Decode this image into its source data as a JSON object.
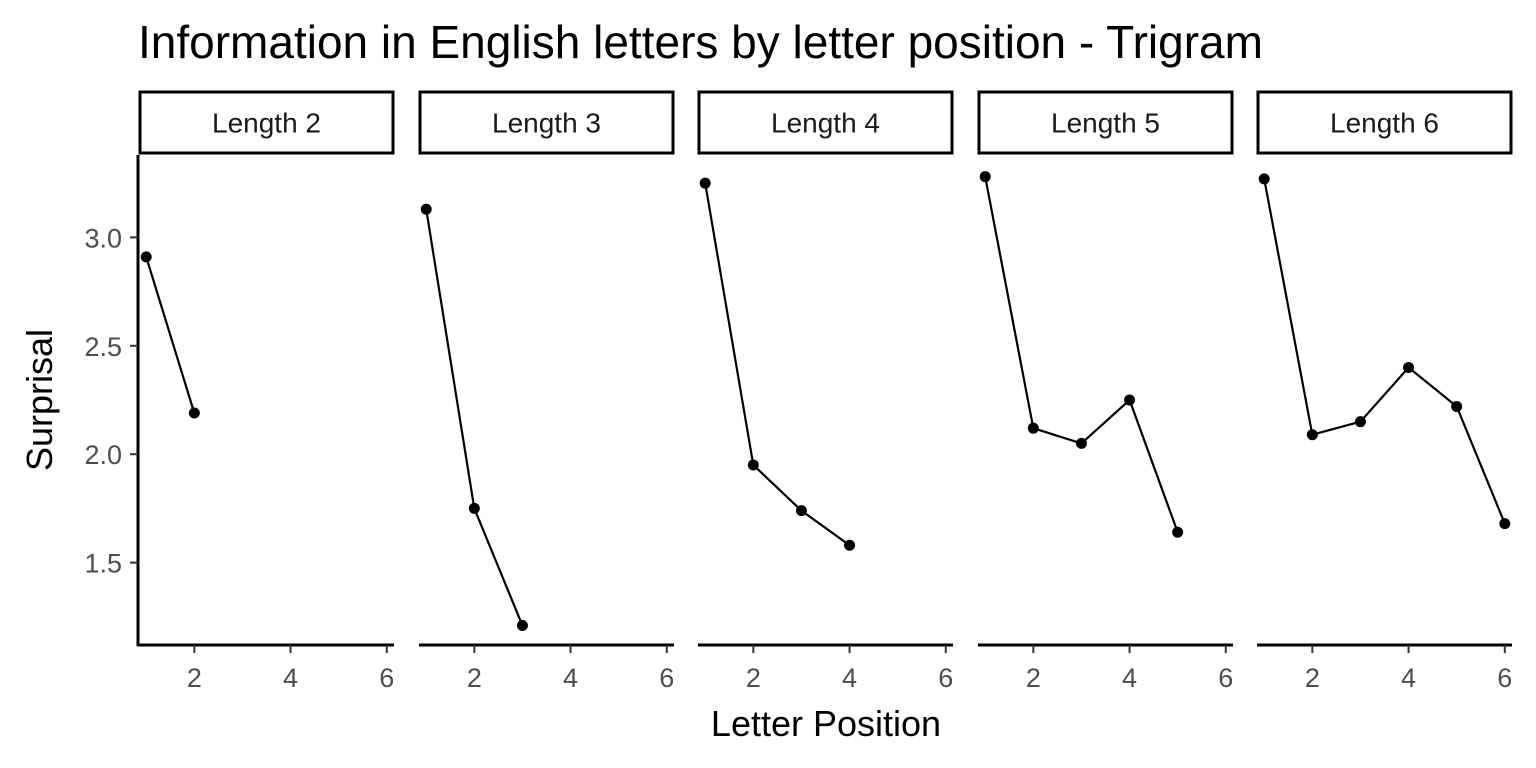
{
  "chart_data": {
    "type": "line",
    "title": "Information in English letters by letter position - Trigram",
    "xlabel": "Letter Position",
    "ylabel": "Surprisal",
    "xlim": [
      0.85,
      6.15
    ],
    "ylim": [
      1.12,
      3.38
    ],
    "x_ticks": [
      2,
      4,
      6
    ],
    "y_ticks": [
      1.5,
      2.0,
      2.5,
      3.0
    ],
    "y_tick_labels": [
      "1.5",
      "2.0",
      "2.5",
      "3.0"
    ],
    "grid": false,
    "line_color": "#000000",
    "point_color": "#000000",
    "facets": [
      {
        "label": "Length 2",
        "x": [
          1,
          2
        ],
        "y": [
          2.91,
          2.19
        ]
      },
      {
        "label": "Length 3",
        "x": [
          1,
          2,
          3
        ],
        "y": [
          3.13,
          1.75,
          1.21
        ]
      },
      {
        "label": "Length 4",
        "x": [
          1,
          2,
          3,
          4
        ],
        "y": [
          3.25,
          1.95,
          1.74,
          1.58
        ]
      },
      {
        "label": "Length 5",
        "x": [
          1,
          2,
          3,
          4,
          5
        ],
        "y": [
          3.28,
          2.12,
          2.05,
          2.25,
          1.64
        ]
      },
      {
        "label": "Length 6",
        "x": [
          1,
          2,
          3,
          4,
          5,
          6
        ],
        "y": [
          3.27,
          2.09,
          2.15,
          2.4,
          2.22,
          1.68
        ]
      }
    ]
  }
}
